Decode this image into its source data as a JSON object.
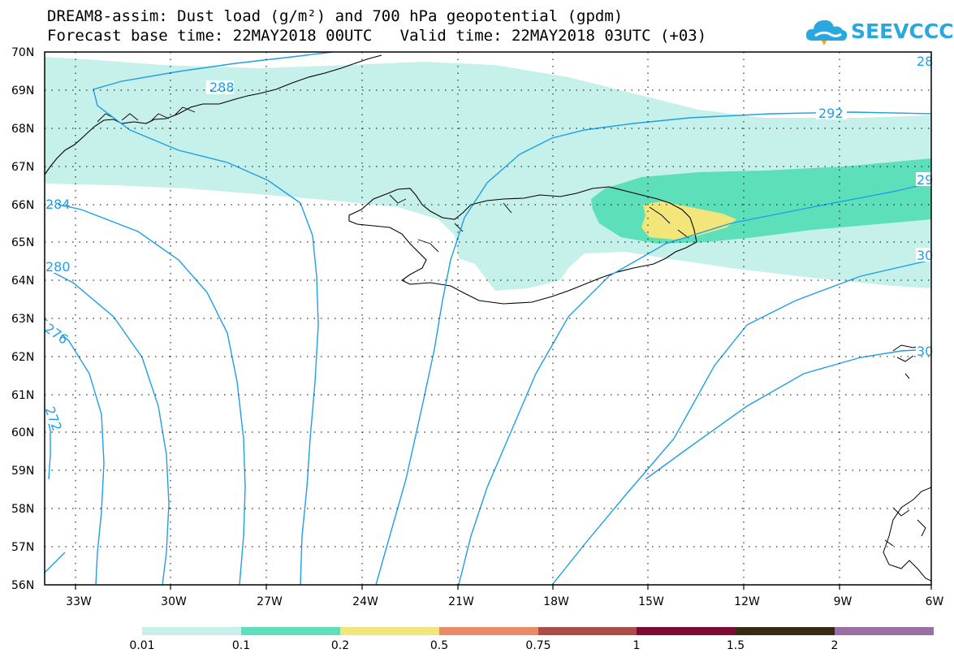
{
  "title_line1": "DREAM8-assim: Dust load (g/m²) and 700 hPa geopotential (gpdm)",
  "title_line2": "Forecast base time: 22MAY2018 00UTC   Valid time: 22MAY2018 03UTC (+03)",
  "logo_text": "SEEVCCC",
  "logo_icon": "cloud-icon",
  "lat_labels": [
    "70N",
    "69N",
    "68N",
    "67N",
    "66N",
    "65N",
    "64N",
    "63N",
    "62N",
    "61N",
    "60N",
    "59N",
    "58N",
    "57N",
    "56N"
  ],
  "lon_labels": [
    "33W",
    "30W",
    "27W",
    "24W",
    "21W",
    "18W",
    "15W",
    "12W",
    "9W",
    "6W"
  ],
  "contour_labels": [
    "288",
    "292",
    "284",
    "280",
    "276",
    "272",
    "28",
    "29",
    "30",
    "30"
  ],
  "colorbar": {
    "labels": [
      "0.01",
      "0.1",
      "0.2",
      "0.5",
      "0.75",
      "1",
      "1.5",
      "2"
    ],
    "colors": [
      "#c6f0ea",
      "#5ddfb9",
      "#f2e67a",
      "#e88c68",
      "#ab4c48",
      "#7c0a33",
      "#3a2a14",
      "#9a6fa6"
    ]
  },
  "colors": {
    "contour": "#1e9fe6",
    "dust_low": "#c6f0ea",
    "dust_mid": "#5ddfb9",
    "dust_high": "#f2e67a",
    "coast": "#000000"
  }
}
